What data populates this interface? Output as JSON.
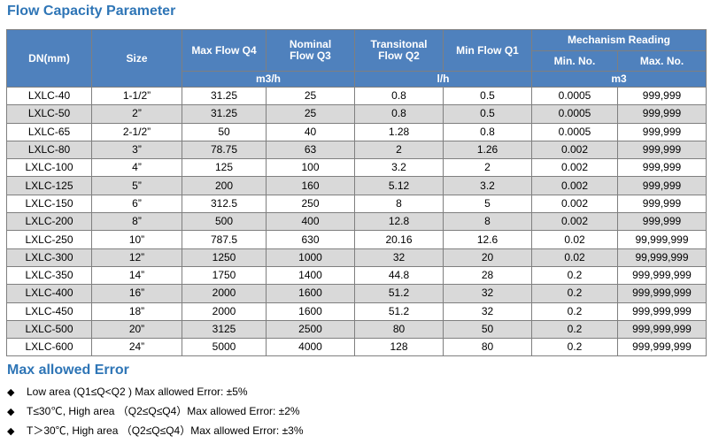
{
  "title": "Flow Capacity Parameter",
  "table": {
    "headers": {
      "dn": "DN(mm)",
      "size": "Size",
      "q4": "Max Flow Q4",
      "q3": "Nominal Flow Q3",
      "q2": "Transitonal Flow Q2",
      "q1": "Min Flow Q1",
      "mechanism": "Mechanism Reading",
      "min_no": "Min. No.",
      "max_no": "Max. No."
    },
    "units": {
      "flow_m3h": "m3/h",
      "flow_lh": "l/h",
      "reading": "m3"
    },
    "rows": [
      [
        "LXLC-40",
        "1-1/2”",
        "31.25",
        "25",
        "0.8",
        "0.5",
        "0.0005",
        "999,999"
      ],
      [
        "LXLC-50",
        "2”",
        "31.25",
        "25",
        "0.8",
        "0.5",
        "0.0005",
        "999,999"
      ],
      [
        "LXLC-65",
        "2-1/2”",
        "50",
        "40",
        "1.28",
        "0.8",
        "0.0005",
        "999,999"
      ],
      [
        "LXLC-80",
        "3”",
        "78.75",
        "63",
        "2",
        "1.26",
        "0.002",
        "999,999"
      ],
      [
        "LXLC-100",
        "4”",
        "125",
        "100",
        "3.2",
        "2",
        "0.002",
        "999,999"
      ],
      [
        "LXLC-125",
        "5”",
        "200",
        "160",
        "5.12",
        "3.2",
        "0.002",
        "999,999"
      ],
      [
        "LXLC-150",
        "6”",
        "312.5",
        "250",
        "8",
        "5",
        "0.002",
        "999,999"
      ],
      [
        "LXLC-200",
        "8”",
        "500",
        "400",
        "12.8",
        "8",
        "0.002",
        "999,999"
      ],
      [
        "LXLC-250",
        "10”",
        "787.5",
        "630",
        "20.16",
        "12.6",
        "0.02",
        "99,999,999"
      ],
      [
        "LXLC-300",
        "12”",
        "1250",
        "1000",
        "32",
        "20",
        "0.02",
        "99,999,999"
      ],
      [
        "LXLC-350",
        "14”",
        "1750",
        "1400",
        "44.8",
        "28",
        "0.2",
        "999,999,999"
      ],
      [
        "LXLC-400",
        "16”",
        "2000",
        "1600",
        "51.2",
        "32",
        "0.2",
        "999,999,999"
      ],
      [
        "LXLC-450",
        "18”",
        "2000",
        "1600",
        "51.2",
        "32",
        "0.2",
        "999,999,999"
      ],
      [
        "LXLC-500",
        "20”",
        "3125",
        "2500",
        "80",
        "50",
        "0.2",
        "999,999,999"
      ],
      [
        "LXLC-600",
        "24”",
        "5000",
        "4000",
        "128",
        "80",
        "0.2",
        "999,999,999"
      ]
    ]
  },
  "error_section": {
    "title": "Max allowed Error",
    "items": [
      "Low area (Q1≤Q<Q2 ) Max allowed Error: ±5%",
      "T≤30℃, High area （Q2≤Q≤Q4）Max allowed Error: ±2%",
      "T＞30℃, High area （Q2≤Q≤Q4）Max allowed Error: ±3%"
    ]
  }
}
